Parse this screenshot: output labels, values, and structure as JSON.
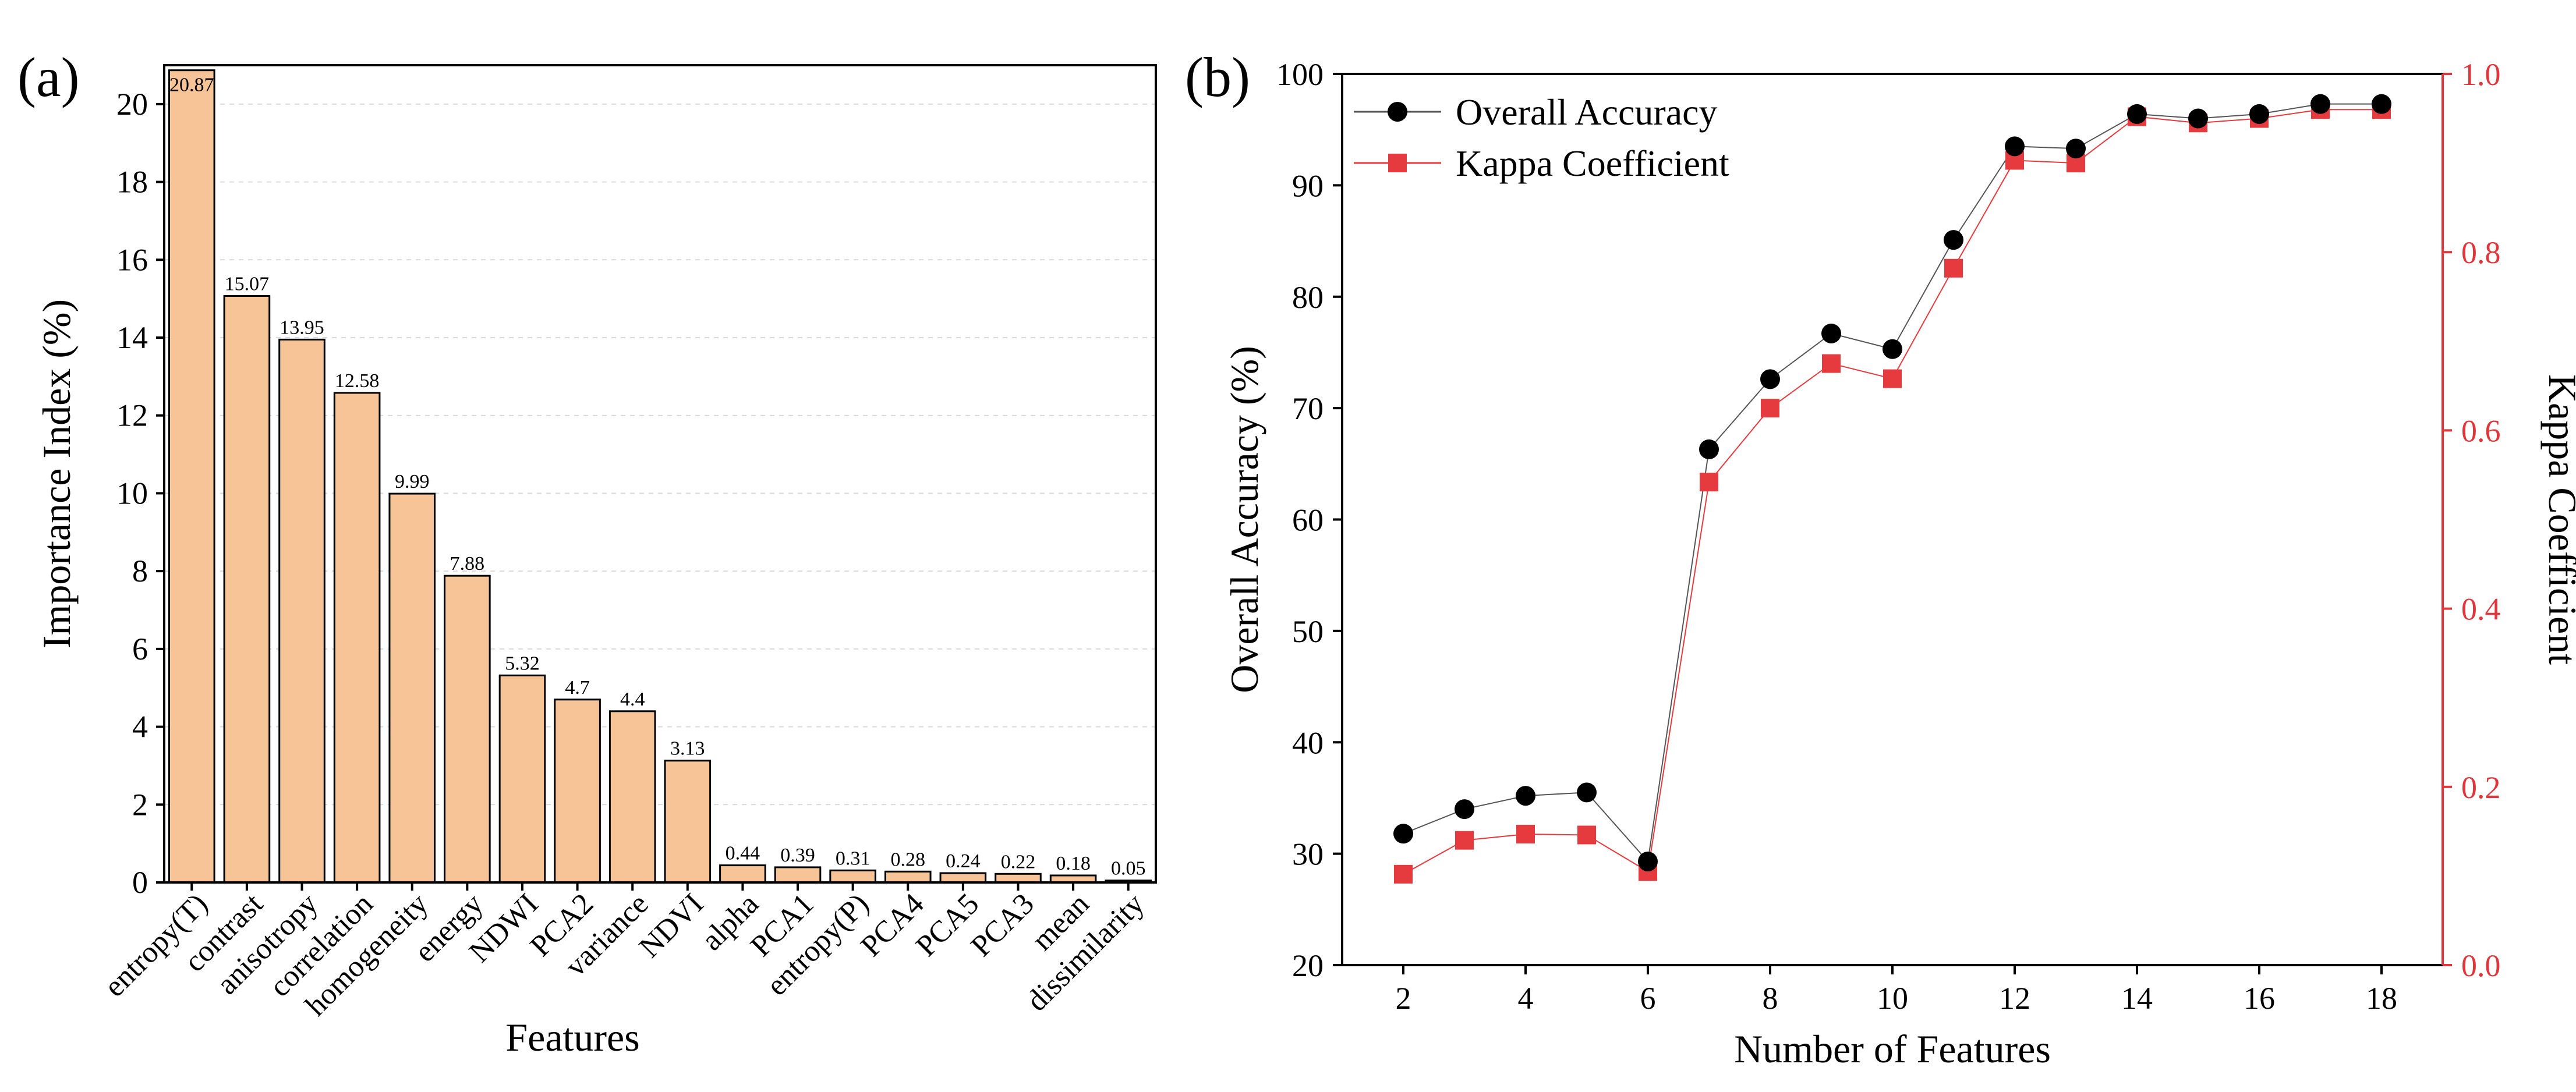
{
  "panels": {
    "a_label": "(a)",
    "b_label": "(b)"
  },
  "colors": {
    "bar_fill": "#f6c497",
    "bar_stroke": "#000000",
    "oa_marker": "#000000",
    "kappa_marker": "#e53b3e",
    "kappa_axis": "#e0353a",
    "grid": "#d9d9d9"
  },
  "chart_data": [
    {
      "type": "bar",
      "panel": "(a)",
      "xlabel": "Features",
      "ylabel": "Importance Index (%)",
      "ylim": [
        0,
        21
      ],
      "yticks": [
        0,
        2,
        4,
        6,
        8,
        10,
        12,
        14,
        16,
        18,
        20
      ],
      "grid": true,
      "categories": [
        "entropy(T)",
        "contrast",
        "anisotropy",
        "correlation",
        "homogeneity",
        "energy",
        "NDWI",
        "PCA2",
        "variance",
        "NDVI",
        "alpha",
        "PCA1",
        "entropy(P)",
        "PCA4",
        "PCA5",
        "PCA3",
        "mean",
        "dissimilarity"
      ],
      "values": [
        20.87,
        15.07,
        13.95,
        12.58,
        9.99,
        7.88,
        5.32,
        4.7,
        4.4,
        3.13,
        0.44,
        0.39,
        0.31,
        0.28,
        0.24,
        0.22,
        0.18,
        0.05
      ],
      "data_labels": [
        "20.87",
        "15.07",
        "13.95",
        "12.58",
        "9.99",
        "7.88",
        "5.32",
        "4.7",
        "4.4",
        "3.13",
        "0.44",
        "0.39",
        "0.31",
        "0.28",
        "0.24",
        "0.22",
        "0.18",
        "0.05"
      ]
    },
    {
      "type": "line",
      "panel": "(b)",
      "xlabel": "Number of Features",
      "ylabel": "Overall Accuracy (%)",
      "y2label": "Kappa Coefficient",
      "xlim": [
        1,
        19
      ],
      "xticks": [
        2,
        4,
        6,
        8,
        10,
        12,
        14,
        16,
        18
      ],
      "ylim": [
        20,
        100
      ],
      "yticks": [
        20,
        30,
        40,
        50,
        60,
        70,
        80,
        90,
        100
      ],
      "y2lim": [
        0,
        1
      ],
      "y2ticks": [
        "0.0",
        "0.2",
        "0.4",
        "0.6",
        "0.8",
        "1.0"
      ],
      "legend_position": "top-left",
      "x": [
        2,
        3,
        4,
        5,
        6,
        7,
        8,
        9,
        10,
        11,
        12,
        13,
        14,
        15,
        16,
        17,
        18
      ],
      "series": [
        {
          "name": "Overall Accuracy",
          "axis": "left",
          "marker": "circle",
          "values": [
            31.8,
            34.0,
            35.2,
            35.5,
            29.3,
            66.3,
            72.6,
            76.7,
            75.3,
            85.1,
            93.5,
            93.3,
            96.4,
            96.0,
            96.4,
            97.3,
            97.3
          ]
        },
        {
          "name": "Kappa Coefficient",
          "axis": "right",
          "marker": "square",
          "values": [
            0.102,
            0.14,
            0.147,
            0.146,
            0.105,
            0.542,
            0.625,
            0.675,
            0.658,
            0.782,
            0.903,
            0.9,
            0.952,
            0.945,
            0.95,
            0.96,
            0.96
          ]
        }
      ]
    }
  ]
}
